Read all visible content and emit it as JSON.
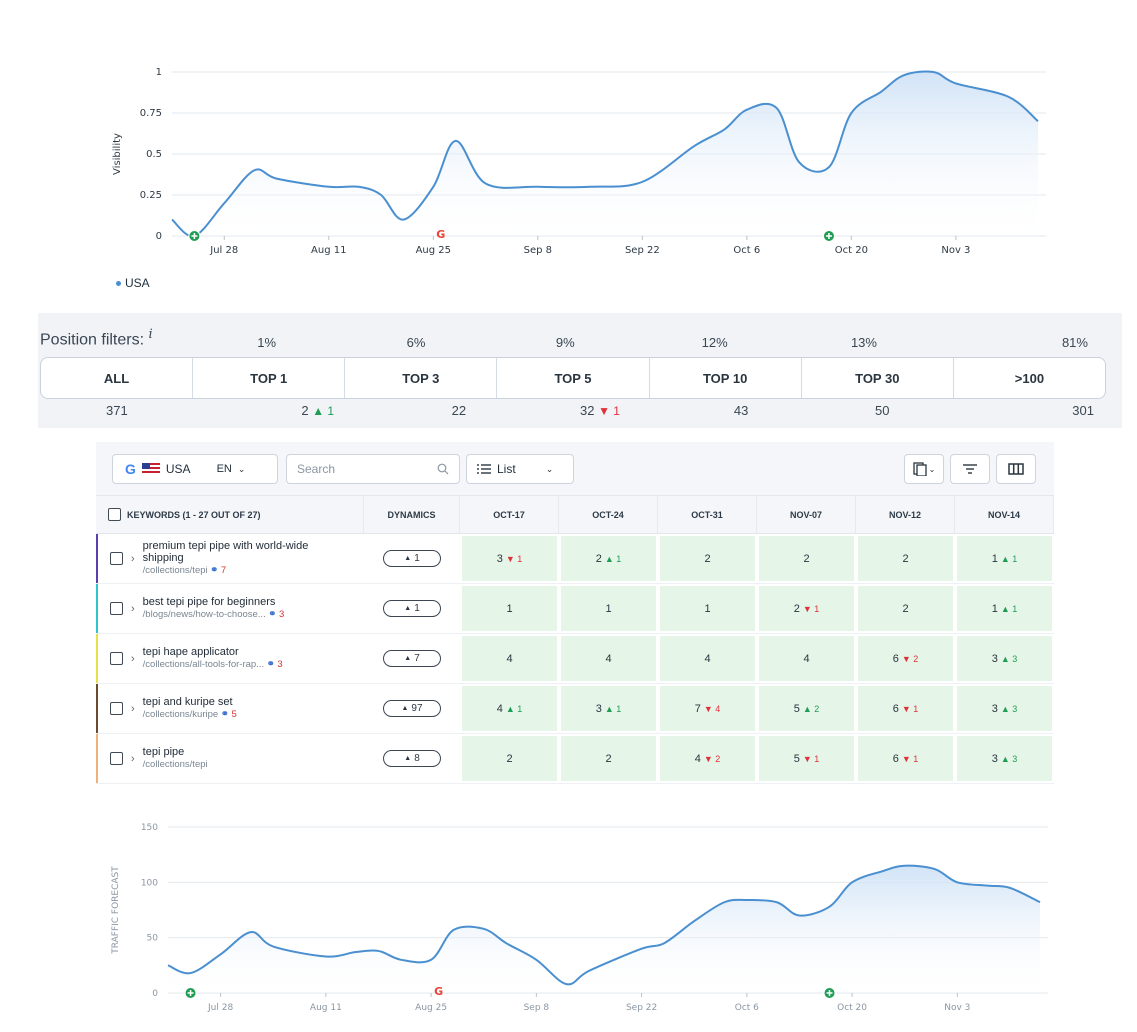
{
  "visibility_chart": {
    "ylabel": "Visibility",
    "yticks": [
      "0",
      "0.25",
      "0.5",
      "0.75",
      "1"
    ],
    "xticks": [
      "Jul 28",
      "Aug 11",
      "Aug 25",
      "Sep 8",
      "Sep 22",
      "Oct 6",
      "Oct 20",
      "Nov 3"
    ],
    "legend": "USA"
  },
  "traffic_chart": {
    "ylabel": "TRAFFIC FORECAST",
    "yticks": [
      "0",
      "50",
      "100",
      "150"
    ],
    "xticks": [
      "Jul 28",
      "Aug 11",
      "Aug 25",
      "Sep 8",
      "Sep 22",
      "Oct 6",
      "Oct 20",
      "Nov 3"
    ]
  },
  "chart_data": [
    {
      "type": "area",
      "ylabel": "Visibility",
      "ylim": [
        0,
        1
      ],
      "x": [
        "Jul 21",
        "Jul 24",
        "Jul 28",
        "Aug 1",
        "Aug 4",
        "Aug 11",
        "Aug 15",
        "Aug 18",
        "Aug 21",
        "Aug 25",
        "Aug 28",
        "Sep 1",
        "Sep 8",
        "Sep 15",
        "Sep 22",
        "Sep 29",
        "Oct 3",
        "Oct 6",
        "Oct 10",
        "Oct 13",
        "Oct 17",
        "Oct 20",
        "Oct 24",
        "Oct 27",
        "Oct 31",
        "Nov 3",
        "Nov 10",
        "Nov 14"
      ],
      "series": [
        {
          "name": "USA",
          "values": [
            0.1,
            0.0,
            0.2,
            0.4,
            0.35,
            0.3,
            0.3,
            0.25,
            0.1,
            0.3,
            0.58,
            0.32,
            0.3,
            0.3,
            0.33,
            0.55,
            0.65,
            0.77,
            0.78,
            0.45,
            0.42,
            0.75,
            0.88,
            0.98,
            1.0,
            0.93,
            0.85,
            0.7
          ]
        }
      ],
      "grid": true,
      "legend": "bottom-left"
    },
    {
      "type": "area",
      "ylabel": "TRAFFIC FORECAST",
      "ylim": [
        0,
        150
      ],
      "x": [
        "Jul 21",
        "Jul 24",
        "Jul 28",
        "Aug 1",
        "Aug 4",
        "Aug 11",
        "Aug 15",
        "Aug 18",
        "Aug 21",
        "Aug 25",
        "Aug 28",
        "Sep 1",
        "Sep 4",
        "Sep 8",
        "Sep 12",
        "Sep 15",
        "Sep 22",
        "Sep 25",
        "Sep 29",
        "Oct 3",
        "Oct 6",
        "Oct 10",
        "Oct 13",
        "Oct 17",
        "Oct 20",
        "Oct 24",
        "Oct 27",
        "Oct 31",
        "Nov 3",
        "Nov 7",
        "Nov 10",
        "Nov 14"
      ],
      "series": [
        {
          "name": "",
          "values": [
            25,
            18,
            35,
            55,
            42,
            33,
            37,
            38,
            30,
            30,
            57,
            58,
            45,
            30,
            8,
            20,
            40,
            45,
            65,
            82,
            84,
            82,
            70,
            78,
            100,
            110,
            115,
            112,
            100,
            97,
            95,
            82
          ]
        }
      ],
      "grid": true
    }
  ],
  "position_filters": {
    "title": "Position filters:",
    "info": "i",
    "percents": [
      "1%",
      "6%",
      "9%",
      "12%",
      "13%",
      "81%"
    ],
    "segments": [
      "ALL",
      "TOP 1",
      "TOP 3",
      "TOP 5",
      "TOP 10",
      "TOP 30",
      ">100"
    ],
    "counts": [
      {
        "value": "371",
        "delta": "",
        "dir": ""
      },
      {
        "value": "2",
        "delta": "1",
        "dir": "up"
      },
      {
        "value": "22",
        "delta": "",
        "dir": ""
      },
      {
        "value": "32",
        "delta": "1",
        "dir": "down"
      },
      {
        "value": "43",
        "delta": "",
        "dir": ""
      },
      {
        "value": "50",
        "delta": "",
        "dir": ""
      },
      {
        "value": "301",
        "delta": "",
        "dir": ""
      }
    ],
    "colors": {
      "up": "#1f9d55",
      "down": "#e0313b"
    }
  },
  "toolbar": {
    "engine": "G",
    "country": "USA",
    "language": "EN",
    "search_placeholder": "Search",
    "view": "List"
  },
  "table": {
    "headers": {
      "keywords": "KEYWORDS (1 - 27 OUT OF 27)",
      "dynamics": "DYNAMICS",
      "dates": [
        "OCT-17",
        "OCT-24",
        "OCT-31",
        "NOV-07",
        "NOV-12",
        "NOV-14"
      ]
    },
    "rows": [
      {
        "keyword": "premium tepi pipe with world-wide shipping",
        "url": "/collections/tepi",
        "links": "7",
        "accent": "#5b3fb0",
        "dynamics": "1",
        "cells": [
          {
            "v": "3",
            "d": "1",
            "dir": "down"
          },
          {
            "v": "2",
            "d": "1",
            "dir": "up"
          },
          {
            "v": "2",
            "d": "",
            "dir": ""
          },
          {
            "v": "2",
            "d": "",
            "dir": ""
          },
          {
            "v": "2",
            "d": "",
            "dir": ""
          },
          {
            "v": "1",
            "d": "1",
            "dir": "up"
          }
        ]
      },
      {
        "keyword": "best tepi pipe for beginners",
        "url": "/blogs/news/how-to-choose...",
        "links": "3",
        "accent": "#2ec4c9",
        "dynamics": "1",
        "cells": [
          {
            "v": "1",
            "d": "",
            "dir": ""
          },
          {
            "v": "1",
            "d": "",
            "dir": ""
          },
          {
            "v": "1",
            "d": "",
            "dir": ""
          },
          {
            "v": "2",
            "d": "1",
            "dir": "down"
          },
          {
            "v": "2",
            "d": "",
            "dir": ""
          },
          {
            "v": "1",
            "d": "1",
            "dir": "up"
          }
        ]
      },
      {
        "keyword": "tepi hape applicator",
        "url": "/collections/all-tools-for-rap...",
        "links": "3",
        "accent": "#e8e04a",
        "dynamics": "7",
        "cells": [
          {
            "v": "4",
            "d": "",
            "dir": ""
          },
          {
            "v": "4",
            "d": "",
            "dir": ""
          },
          {
            "v": "4",
            "d": "",
            "dir": ""
          },
          {
            "v": "4",
            "d": "",
            "dir": ""
          },
          {
            "v": "6",
            "d": "2",
            "dir": "down"
          },
          {
            "v": "3",
            "d": "3",
            "dir": "up"
          }
        ]
      },
      {
        "keyword": "tepi and kuripe set",
        "url": "/collections/kuripe",
        "links": "5",
        "accent": "#6b4a2f",
        "dynamics": "97",
        "cells": [
          {
            "v": "4",
            "d": "1",
            "dir": "up"
          },
          {
            "v": "3",
            "d": "1",
            "dir": "up"
          },
          {
            "v": "7",
            "d": "4",
            "dir": "down"
          },
          {
            "v": "5",
            "d": "2",
            "dir": "up"
          },
          {
            "v": "6",
            "d": "1",
            "dir": "down"
          },
          {
            "v": "3",
            "d": "3",
            "dir": "up"
          }
        ]
      },
      {
        "keyword": "tepi pipe",
        "url": "/collections/tepi",
        "links": "",
        "accent": "#f0b07a",
        "dynamics": "8",
        "cells": [
          {
            "v": "2",
            "d": "",
            "dir": ""
          },
          {
            "v": "2",
            "d": "",
            "dir": ""
          },
          {
            "v": "4",
            "d": "2",
            "dir": "down"
          },
          {
            "v": "5",
            "d": "1",
            "dir": "down"
          },
          {
            "v": "6",
            "d": "1",
            "dir": "down"
          },
          {
            "v": "3",
            "d": "3",
            "dir": "up"
          }
        ]
      }
    ]
  },
  "colors": {
    "line": "#4a8fd0",
    "area_top": "#cfe2f6",
    "grid": "#e3e8ee",
    "cell_bg": "#e5f5e7",
    "marker_green": "#1f9d55"
  }
}
